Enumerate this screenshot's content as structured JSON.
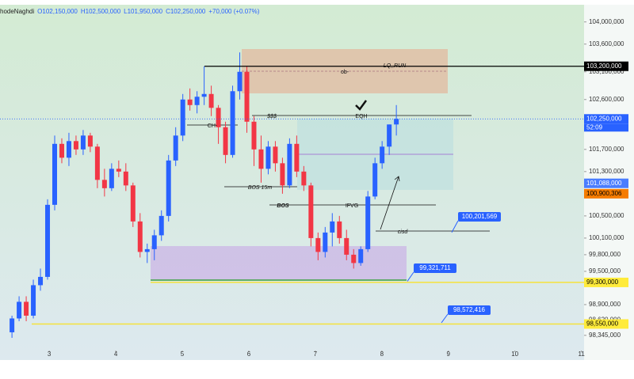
{
  "chart_data": {
    "type": "candlestick",
    "header": [
      "hodeNaghdi",
      "O102,150,000",
      "H102,500,000",
      "L101,950,000",
      "C102,250,000",
      "+70,000 (+0.07%)"
    ],
    "x": [
      2.44,
      2.547,
      2.654,
      2.761,
      2.868,
      2.975,
      3.082,
      3.189,
      3.296,
      3.403,
      3.51,
      3.617,
      3.724,
      3.831,
      3.938,
      4.045,
      4.152,
      4.259,
      4.366,
      4.473,
      4.58,
      4.687,
      4.794,
      4.901,
      5.008,
      5.115,
      5.222,
      5.329,
      5.436,
      5.543,
      5.65,
      5.757,
      5.864,
      5.971,
      6.078,
      6.185,
      6.292,
      6.399,
      6.506,
      6.613,
      6.72,
      6.827,
      6.934,
      7.041,
      7.148,
      7.255,
      7.362,
      7.469,
      7.576,
      7.683,
      7.79,
      7.897,
      8.004,
      8.111,
      8.218
    ],
    "open": [
      98400000,
      98650000,
      98950000,
      98700000,
      99250000,
      99400000,
      100700000,
      101800000,
      101550000,
      101850000,
      101700000,
      101950000,
      101750000,
      101150000,
      101000000,
      101350000,
      101300000,
      101050000,
      100400000,
      99850000,
      99900000,
      100150000,
      100500000,
      101500000,
      101950000,
      102600000,
      102500000,
      102650000,
      102700000,
      102450000,
      102100000,
      101600000,
      102750000,
      103100000,
      102200000,
      101700000,
      101350000,
      101750000,
      101450000,
      101050000,
      101800000,
      101300000,
      101050000,
      100100000,
      99850000,
      100200000,
      100400000,
      100100000,
      99800000,
      99650000,
      99900000,
      100850000,
      101450000,
      101750000,
      102150000
    ],
    "high": [
      98700000,
      99050000,
      99050000,
      99350000,
      99550000,
      100800000,
      101950000,
      101900000,
      102000000,
      101950000,
      102050000,
      102000000,
      101800000,
      101350000,
      101450000,
      101500000,
      101450000,
      101100000,
      100550000,
      100000000,
      100250000,
      100600000,
      101600000,
      102100000,
      102700000,
      102800000,
      102750000,
      103200000,
      102850000,
      102500000,
      102200000,
      102850000,
      103450000,
      103200000,
      102300000,
      101950000,
      101850000,
      101850000,
      101550000,
      101900000,
      101950000,
      101400000,
      101100000,
      100200000,
      100300000,
      100550000,
      100500000,
      100250000,
      99900000,
      99950000,
      100950000,
      101550000,
      101850000,
      102150000,
      102500000
    ],
    "low": [
      98300000,
      98600000,
      98600000,
      98650000,
      99150000,
      99350000,
      100600000,
      101450000,
      101400000,
      101600000,
      101600000,
      101650000,
      101000000,
      100850000,
      100950000,
      101200000,
      100950000,
      100300000,
      99750000,
      99650000,
      99700000,
      100050000,
      100400000,
      101400000,
      101850000,
      102400000,
      102350000,
      102500000,
      102300000,
      101800000,
      101450000,
      101550000,
      102600000,
      102000000,
      101400000,
      101100000,
      101250000,
      101300000,
      100900000,
      101000000,
      101200000,
      100950000,
      99950000,
      99700000,
      99750000,
      99950000,
      100000000,
      99700000,
      99550000,
      99600000,
      99850000,
      100800000,
      101350000,
      101600000,
      101950000
    ],
    "close": [
      98650000,
      98950000,
      98700000,
      99250000,
      99400000,
      100700000,
      101800000,
      101550000,
      101850000,
      101700000,
      101950000,
      101750000,
      101150000,
      101000000,
      101350000,
      101300000,
      101050000,
      100400000,
      99850000,
      99900000,
      100150000,
      100500000,
      101500000,
      101950000,
      102600000,
      102500000,
      102650000,
      102700000,
      102450000,
      102100000,
      101600000,
      102750000,
      103100000,
      102200000,
      101700000,
      101350000,
      101750000,
      101450000,
      101050000,
      101800000,
      101300000,
      101050000,
      100100000,
      99850000,
      100200000,
      100400000,
      100100000,
      99800000,
      99650000,
      99900000,
      100850000,
      101450000,
      101750000,
      102150000,
      102250000
    ],
    "up_color": "#2962ff",
    "down_color": "#f23645",
    "xlim": [
      2.26,
      11.04
    ],
    "xticks": [
      3,
      4,
      5,
      6,
      7,
      8,
      9,
      10,
      11
    ],
    "ylim": [
      97900000,
      104310000
    ],
    "yticks": [
      {
        "value": 104000000,
        "label": "104,000,000"
      },
      {
        "value": 103600000,
        "label": "103,600,000"
      },
      {
        "value": 103100000,
        "label": "103,100,000"
      },
      {
        "value": 102600000,
        "label": "102,600,000"
      },
      {
        "value": 101700000,
        "label": "101,700,000"
      },
      {
        "value": 101300000,
        "label": "101,300,000"
      },
      {
        "value": 100500000,
        "label": "100,500,000"
      },
      {
        "value": 100100000,
        "label": "100,100,000"
      },
      {
        "value": 99800000,
        "label": "99,800,000"
      },
      {
        "value": 99500000,
        "label": "99,500,000"
      },
      {
        "value": 98900000,
        "label": "98,900,000"
      },
      {
        "value": 98620000,
        "label": "98,620,000"
      },
      {
        "value": 98345000,
        "label": "98,345,000"
      }
    ],
    "price_tags": [
      {
        "value": 103200000,
        "label": "103,200,000",
        "color": "#000000",
        "text_color": "#ffffff"
      },
      {
        "value": 102250000,
        "label": "102,250,000",
        "color": "#2962ff",
        "text_color": "#ffffff"
      },
      {
        "value": 101088000,
        "label": "101,088,000",
        "color": "#4a7dff",
        "text_color": "#ffffff"
      },
      {
        "value": 100900306,
        "label": "100,900,306",
        "color": "#f57c00",
        "text_color": "#000000"
      },
      {
        "value": 99300000,
        "label": "99,300,000",
        "color": "#ffeb3b",
        "text_color": "#000000"
      },
      {
        "value": 98550000,
        "label": "98,550,000",
        "color": "#ffeb3b",
        "text_color": "#000000"
      }
    ],
    "countdown": "52:09",
    "callouts": [
      {
        "value": 100201569,
        "label": "100,201,569"
      },
      {
        "value": 99321711,
        "label": "99,321,711"
      },
      {
        "value": 98572416,
        "label": "98,572,416"
      }
    ],
    "annotations": {
      "lq_run": "LQ_RUN",
      "ob": "ob-",
      "eqh": "EQH",
      "liquidity": "$$$",
      "choch": "CH-",
      "bos_15m": "BOS 15m",
      "bos": "BOS",
      "ifvg": "IFVG",
      "cisd": "cisd"
    }
  }
}
